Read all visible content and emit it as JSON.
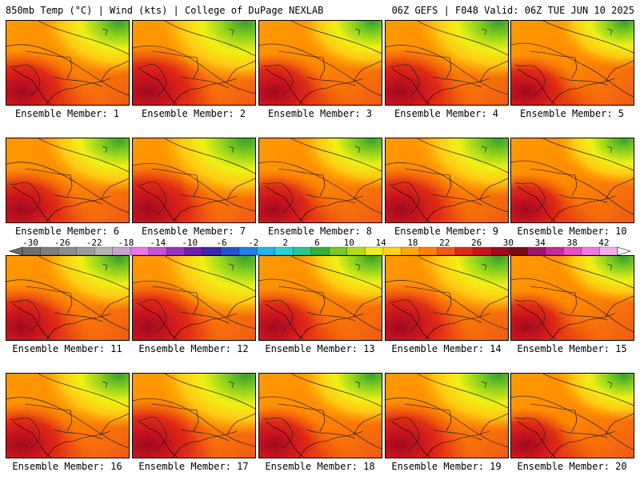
{
  "header": {
    "left": "850mb Temp (°C) | Wind (kts) | College of DuPage NEXLAB",
    "right": "06Z GEFS | F048 Valid: 06Z TUE JUN 10 2025"
  },
  "members": [
    "Ensemble Member: 1",
    "Ensemble Member: 2",
    "Ensemble Member: 3",
    "Ensemble Member: 4",
    "Ensemble Member: 5",
    "Ensemble Member: 6",
    "Ensemble Member: 7",
    "Ensemble Member: 8",
    "Ensemble Member: 9",
    "Ensemble Member: 10",
    "Ensemble Member: 11",
    "Ensemble Member: 12",
    "Ensemble Member: 13",
    "Ensemble Member: 14",
    "Ensemble Member: 15",
    "Ensemble Member: 16",
    "Ensemble Member: 17",
    "Ensemble Member: 18",
    "Ensemble Member: 19",
    "Ensemble Member: 20"
  ],
  "colorbar": {
    "labels": [
      "-30",
      "-26",
      "-22",
      "-18",
      "-14",
      "-10",
      "-6",
      "-2",
      "2",
      "6",
      "10",
      "14",
      "18",
      "22",
      "26",
      "30",
      "34",
      "38",
      "42"
    ],
    "colors": [
      "#6e6e6e",
      "#7e7e7e",
      "#8d8d8d",
      "#9b9b9b",
      "#b4b4b4",
      "#c8a0d2",
      "#e678e6",
      "#c850dc",
      "#9632c8",
      "#6e1eb4",
      "#3c28b4",
      "#2850d2",
      "#1e82e6",
      "#1eb4f0",
      "#28d2d2",
      "#28c896",
      "#32b432",
      "#78c81e",
      "#b4dc14",
      "#f0f014",
      "#ffd214",
      "#ffaa00",
      "#ff8200",
      "#f05a14",
      "#e12d14",
      "#c8141e",
      "#a00a1e",
      "#780a14",
      "#a0146e",
      "#c8289b",
      "#e650c8",
      "#f078e6",
      "#f5aaf0"
    ]
  }
}
